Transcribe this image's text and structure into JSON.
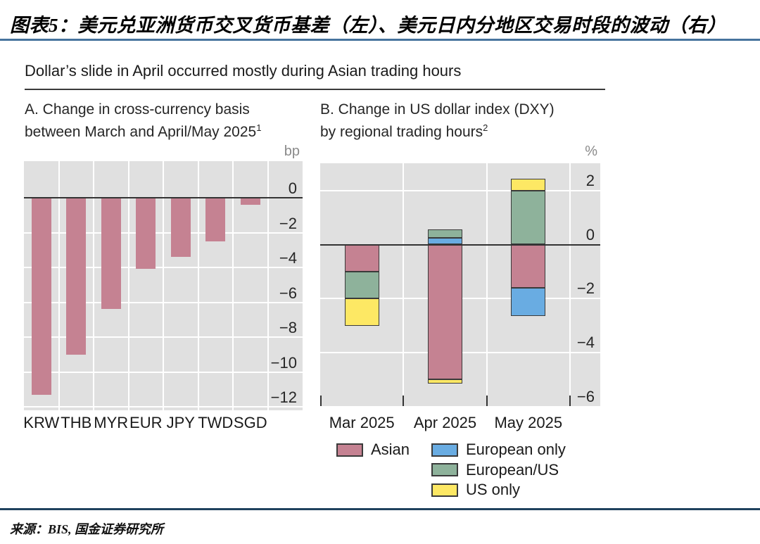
{
  "header": {
    "title": "图表5：美元兑亚洲货币交叉货币基差（左）、美元日内分地区交易时段的波动（右）"
  },
  "figure": {
    "subtitle": "Dollar’s slide in April occurred mostly during Asian trading hours",
    "panel_a": {
      "title_line1": "A. Change in cross-currency basis",
      "title_line2": "between March and April/May 2025",
      "footnote_sup": "1",
      "unit": "bp"
    },
    "panel_b": {
      "title_line1": "B. Change in US dollar index (DXY)",
      "title_line2": "by regional trading hours",
      "footnote_sup": "2",
      "unit": "%"
    }
  },
  "colors": {
    "top_rule": "#47749e",
    "bottom_rule": "#1f425e",
    "plot_background": "#e0e0e0",
    "zero_line": "#333333",
    "asian": "#c58292",
    "european_only": "#69ace2",
    "european_us": "#8eb29b",
    "us_only": "#fde864"
  },
  "legend": {
    "col1": [
      {
        "label": "Asian",
        "color": "#c58292"
      }
    ],
    "col2": [
      {
        "label": "European only",
        "color": "#69ace2"
      },
      {
        "label": "European/US",
        "color": "#8eb29b"
      },
      {
        "label": "US only",
        "color": "#fde864"
      }
    ]
  },
  "source": "来源：BIS, 国金证券研究所",
  "chart_data": [
    {
      "type": "bar",
      "title": "A. Change in cross-currency basis between March and April/May 2025",
      "ylabel": "bp",
      "categories": [
        "KRW",
        "THB",
        "MYR",
        "EUR",
        "JPY",
        "TWD",
        "SGD"
      ],
      "values": [
        -11.3,
        -9.0,
        -6.4,
        -4.1,
        -3.4,
        -2.5,
        -0.4
      ],
      "bar_color": "#c58292",
      "yticks": [
        0,
        -2,
        -4,
        -6,
        -8,
        -10,
        -12
      ],
      "ylim": [
        -12.2,
        2.1
      ],
      "grid": true,
      "legend_position": "none"
    },
    {
      "type": "bar",
      "stacked": true,
      "title": "B. Change in US dollar index (DXY) by regional trading hours",
      "ylabel": "%",
      "categories": [
        "Mar 2025",
        "Apr 2025",
        "May 2025"
      ],
      "series": [
        {
          "name": "Asian",
          "color": "#c58292",
          "values": [
            -1.0,
            -5.0,
            -1.6
          ]
        },
        {
          "name": "European only",
          "color": "#69ace2",
          "values": [
            0,
            0.25,
            -1.05
          ]
        },
        {
          "name": "European/US",
          "color": "#8eb29b",
          "values": [
            -1.0,
            0.3,
            2.0
          ]
        },
        {
          "name": "US only",
          "color": "#fde864",
          "values": [
            -1.0,
            -0.15,
            0.45
          ]
        }
      ],
      "yticks": [
        2,
        0,
        -2,
        -4,
        -6
      ],
      "ylim": [
        -6.0,
        3.0
      ],
      "grid": true,
      "legend_position": "below"
    }
  ]
}
